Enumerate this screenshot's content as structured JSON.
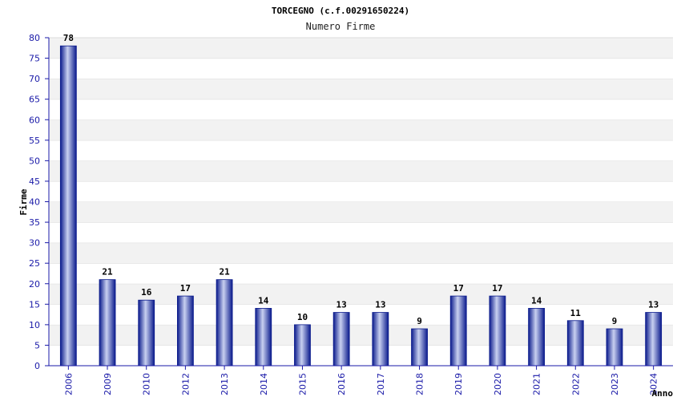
{
  "chart_data": {
    "type": "bar",
    "title": "TORCEGNO (c.f.00291650224)",
    "subtitle": "Numero Firme",
    "xlabel": "Anno",
    "ylabel": "Firme",
    "categories": [
      "2006",
      "2009",
      "2010",
      "2012",
      "2013",
      "2014",
      "2015",
      "2016",
      "2017",
      "2018",
      "2019",
      "2020",
      "2021",
      "2022",
      "2023",
      "2024"
    ],
    "values": [
      78,
      21,
      16,
      17,
      21,
      14,
      10,
      13,
      13,
      9,
      17,
      17,
      14,
      11,
      9,
      13
    ],
    "ylim": [
      0,
      80
    ],
    "ytick_step": 5,
    "grid": true,
    "legend": "none",
    "colors": {
      "bar_dark": "#0a1a8c",
      "bar_light": "#c8d0f0",
      "band": "#f2f2f2",
      "tick_text": "#1a1aa8",
      "axis": "#1a1aa8"
    }
  }
}
